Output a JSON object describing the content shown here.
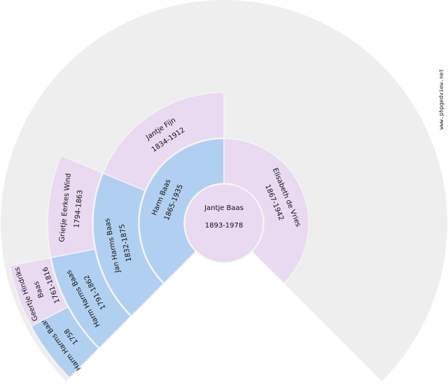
{
  "watermark": "www.phpgedview.net",
  "colors": {
    "male": "#b1cff1",
    "female": "#e9d9f1",
    "empty": "#eeeeee",
    "separator": "#f4f4f4"
  },
  "root": {
    "name": "Jantje Baas",
    "dates": "1893-1978",
    "sex": "female"
  },
  "ancestors": [
    {
      "gen": 1,
      "slot": 0,
      "name": "Harm Baas",
      "dates": "1865-1935",
      "sex": "male"
    },
    {
      "gen": 1,
      "slot": 1,
      "name": "Elisabeth de Vries",
      "dates": "1867-1942",
      "sex": "female"
    },
    {
      "gen": 2,
      "slot": 0,
      "name": "Jan Harms Baas",
      "dates": "1832-1875",
      "sex": "male"
    },
    {
      "gen": 2,
      "slot": 1,
      "name": "Jantje Fijn",
      "dates": "1834-1912",
      "sex": "female"
    },
    {
      "gen": 3,
      "slot": 0,
      "name": "Harm Harms Baas",
      "dates": "1791-1862",
      "sex": "male"
    },
    {
      "gen": 3,
      "slot": 1,
      "name": "Grietje Eerkes Wind",
      "dates": "1794-1863",
      "sex": "female"
    },
    {
      "gen": 4,
      "slot": 0,
      "name": "Harm Harms Baas",
      "dates": "1758",
      "sex": "male"
    },
    {
      "gen": 4,
      "slot": 1,
      "name": "Geertje Hindriks Baas",
      "dates": "1761-1816",
      "sex": "female"
    }
  ]
}
